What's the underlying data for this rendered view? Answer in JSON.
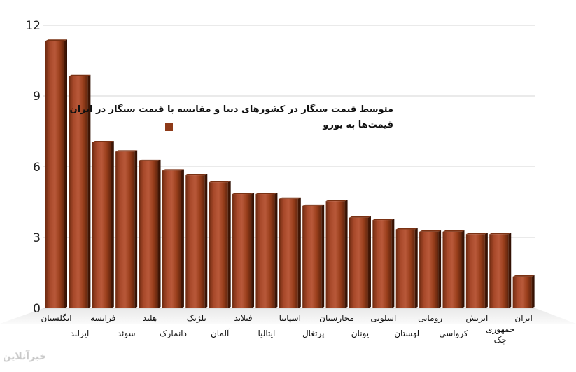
{
  "chart_data": {
    "type": "bar",
    "title_lines": [
      "متوسط قیمت سیگار در کشورهای دنیا و مقایسه با قیمت سیگار در ایران",
      "قیمت‌ها به یورو"
    ],
    "ylim": [
      0,
      12
    ],
    "yticks": [
      0,
      3,
      6,
      9,
      12
    ],
    "grid": true,
    "legend": "top-right",
    "categories": [
      "انگلستان",
      "ایرلند",
      "فرانسه",
      "سوئد",
      "هلند",
      "دانمارک",
      "بلژیک",
      "آلمان",
      "فنلاند",
      "ایتالیا",
      "اسپانیا",
      "پرتغال",
      "مجارستان",
      "یونان",
      "اسلونی",
      "لهستان",
      "رومانی",
      "کرواسی",
      "اتریش",
      "جمهوری چک",
      "ایران"
    ],
    "values": [
      11.4,
      9.9,
      7.1,
      6.7,
      6.3,
      5.9,
      5.7,
      5.4,
      4.9,
      4.9,
      4.7,
      4.4,
      4.6,
      3.9,
      3.8,
      3.4,
      3.3,
      3.3,
      3.2,
      3.2,
      1.4
    ],
    "bar_color": "#9a3f1c"
  },
  "watermark_text": "خبرآنلاین"
}
